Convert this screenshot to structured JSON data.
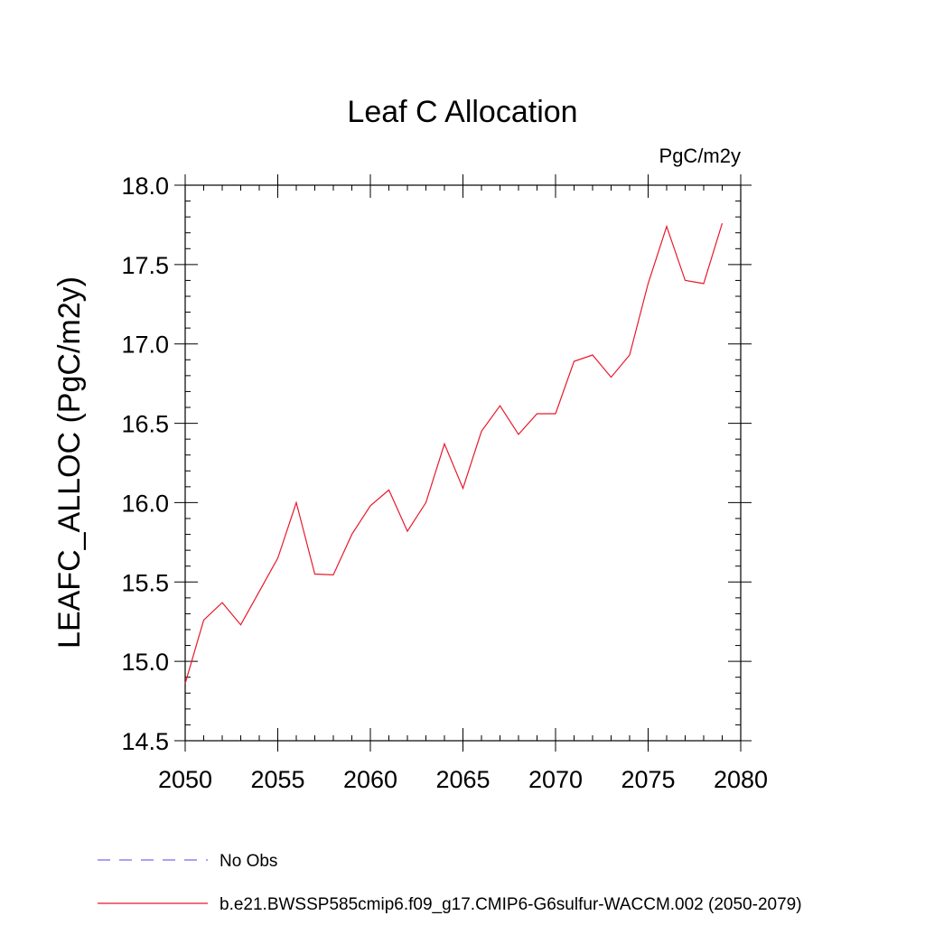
{
  "chart_data": {
    "type": "line",
    "title": "Leaf C Allocation",
    "units": "PgC/m2y",
    "ylabel": "LEAFC_ALLOC  (PgC/m2y)",
    "xlabel": "",
    "xlim": [
      2050,
      2080
    ],
    "ylim": [
      14.5,
      18.0
    ],
    "x_ticks": [
      2050,
      2055,
      2060,
      2065,
      2070,
      2075,
      2080
    ],
    "y_ticks": [
      "14.5",
      "15.0",
      "15.5",
      "16.0",
      "16.5",
      "17.0",
      "17.5",
      "18.0"
    ],
    "grid": false,
    "legend_position": "bottom",
    "series": [
      {
        "name": "b.e21.BWSSP585cmip6.f09_g17.CMIP6-G6sulfur-WACCM.002 (2050-2079)",
        "color": "#e8192c",
        "style": "solid",
        "x": [
          2050,
          2051,
          2052,
          2053,
          2054,
          2055,
          2056,
          2057,
          2058,
          2059,
          2060,
          2061,
          2062,
          2063,
          2064,
          2065,
          2066,
          2067,
          2068,
          2069,
          2070,
          2071,
          2072,
          2073,
          2074,
          2075,
          2076,
          2077,
          2078,
          2079
        ],
        "y": [
          14.86,
          15.26,
          15.37,
          15.23,
          15.44,
          15.65,
          16.0,
          15.55,
          15.545,
          15.8,
          15.98,
          16.08,
          15.82,
          16.0,
          16.37,
          16.09,
          16.45,
          16.61,
          16.43,
          16.56,
          16.56,
          16.89,
          16.93,
          16.79,
          16.93,
          17.38,
          17.74,
          17.4,
          17.38,
          17.76
        ]
      }
    ],
    "legend": [
      {
        "label": "No Obs",
        "color": "#7b68ee",
        "style": "dashed"
      },
      {
        "label": "b.e21.BWSSP585cmip6.f09_g17.CMIP6-G6sulfur-WACCM.002 (2050-2079)",
        "color": "#e8192c",
        "style": "solid"
      }
    ]
  }
}
